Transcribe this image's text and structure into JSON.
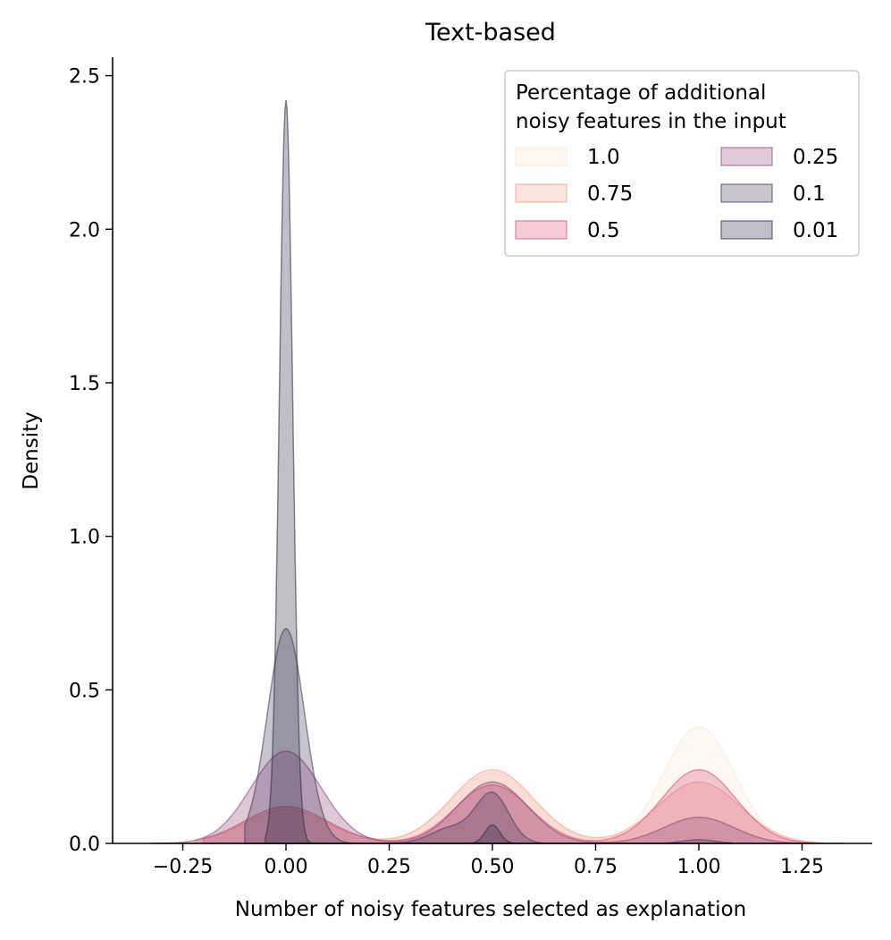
{
  "chart_data": {
    "type": "kde",
    "title": "Text-based",
    "xlabel": "Number of noisy features selected as explanation",
    "ylabel": "Density",
    "xlim": [
      -0.42,
      1.42
    ],
    "ylim": [
      0,
      2.56
    ],
    "xticks": [
      -0.25,
      0.0,
      0.25,
      0.5,
      0.75,
      1.0,
      1.25
    ],
    "xtick_labels": [
      "−0.25",
      "0.00",
      "0.25",
      "0.50",
      "0.75",
      "1.00",
      "1.25"
    ],
    "yticks": [
      0.0,
      0.5,
      1.0,
      1.5,
      2.0,
      2.5
    ],
    "ytick_labels": [
      "0.0",
      "0.5",
      "1.0",
      "1.5",
      "2.0",
      "2.5"
    ],
    "legend_title": "Percentage of additional noisy features in the input",
    "legend_title_lines": [
      "Percentage of additional",
      "noisy features in the input"
    ],
    "legend_position": "top-right",
    "series": [
      {
        "name": "1.0",
        "color": "#fbe6da",
        "support": [
          -0.22,
          1.3
        ],
        "peaks": [
          {
            "center": 0.0,
            "height": 0.12,
            "width": 0.1
          },
          {
            "center": 0.5,
            "height": 0.23,
            "width": 0.1
          },
          {
            "center": 1.0,
            "height": 0.38,
            "width": 0.085
          }
        ]
      },
      {
        "name": "0.75",
        "color": "#f0a38f",
        "support": [
          -0.22,
          1.3
        ],
        "peaks": [
          {
            "center": 0.0,
            "height": 0.11,
            "width": 0.1
          },
          {
            "center": 0.5,
            "height": 0.24,
            "width": 0.1
          },
          {
            "center": 1.0,
            "height": 0.2,
            "width": 0.1
          }
        ]
      },
      {
        "name": "0.5",
        "color": "#d9527a",
        "support": [
          -0.2,
          1.28
        ],
        "peaks": [
          {
            "center": 0.0,
            "height": 0.12,
            "width": 0.1
          },
          {
            "center": 0.5,
            "height": 0.19,
            "width": 0.09
          },
          {
            "center": 1.0,
            "height": 0.24,
            "width": 0.09
          }
        ]
      },
      {
        "name": "0.25",
        "color": "#8e4a7a",
        "support": [
          -0.32,
          1.35
        ],
        "peaks": [
          {
            "center": 0.0,
            "height": 0.3,
            "width": 0.085
          },
          {
            "center": 0.5,
            "height": 0.2,
            "width": 0.085
          },
          {
            "center": 1.0,
            "height": 0.085,
            "width": 0.085
          }
        ]
      },
      {
        "name": "0.1",
        "color": "#4a3a5c",
        "support": [
          -0.1,
          1.08
        ],
        "peaks": [
          {
            "center": 0.0,
            "height": 0.7,
            "width": 0.045
          },
          {
            "center": 0.4,
            "height": 0.05,
            "width": 0.05
          },
          {
            "center": 0.5,
            "height": 0.16,
            "width": 0.04
          },
          {
            "center": 1.0,
            "height": 0.012,
            "width": 0.04
          }
        ]
      },
      {
        "name": "0.01",
        "color": "#2e2a40",
        "support": [
          -0.05,
          0.55
        ],
        "peaks": [
          {
            "center": 0.0,
            "height": 2.42,
            "width": 0.016
          },
          {
            "center": 0.5,
            "height": 0.06,
            "width": 0.018
          }
        ]
      }
    ]
  }
}
